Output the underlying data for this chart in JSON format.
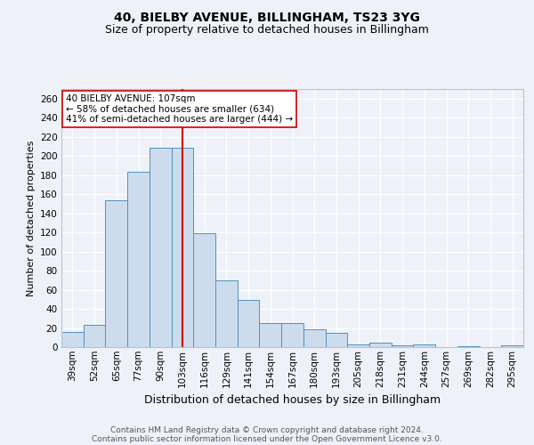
{
  "title": "40, BIELBY AVENUE, BILLINGHAM, TS23 3YG",
  "subtitle": "Size of property relative to detached houses in Billingham",
  "xlabel": "Distribution of detached houses by size in Billingham",
  "ylabel": "Number of detached properties",
  "bar_labels": [
    "39sqm",
    "52sqm",
    "65sqm",
    "77sqm",
    "90sqm",
    "103sqm",
    "116sqm",
    "129sqm",
    "141sqm",
    "154sqm",
    "167sqm",
    "180sqm",
    "193sqm",
    "205sqm",
    "218sqm",
    "231sqm",
    "244sqm",
    "257sqm",
    "269sqm",
    "282sqm",
    "295sqm"
  ],
  "bar_heights": [
    16,
    23,
    154,
    183,
    209,
    209,
    119,
    70,
    49,
    25,
    25,
    19,
    15,
    3,
    5,
    2,
    3,
    0,
    1,
    0,
    2
  ],
  "bar_color": "#ccdcec",
  "bar_edge_color": "#5090c0",
  "vline_color": "#cc0000",
  "vline_x": 5.0,
  "annotation_text": "40 BIELBY AVENUE: 107sqm\n← 58% of detached houses are smaller (634)\n41% of semi-detached houses are larger (444) →",
  "annotation_box_color": "white",
  "annotation_box_edge_color": "#cc0000",
  "ylim": [
    0,
    270
  ],
  "yticks": [
    0,
    20,
    40,
    60,
    80,
    100,
    120,
    140,
    160,
    180,
    200,
    220,
    240,
    260
  ],
  "footer1": "Contains HM Land Registry data © Crown copyright and database right 2024.",
  "footer2": "Contains public sector information licensed under the Open Government Licence v3.0.",
  "bg_color": "#eef2f8",
  "grid_color": "white",
  "title_fontsize": 10,
  "subtitle_fontsize": 9,
  "xlabel_fontsize": 9,
  "ylabel_fontsize": 8,
  "tick_fontsize": 7.5,
  "annotation_fontsize": 7.5,
  "footer_fontsize": 6.5
}
